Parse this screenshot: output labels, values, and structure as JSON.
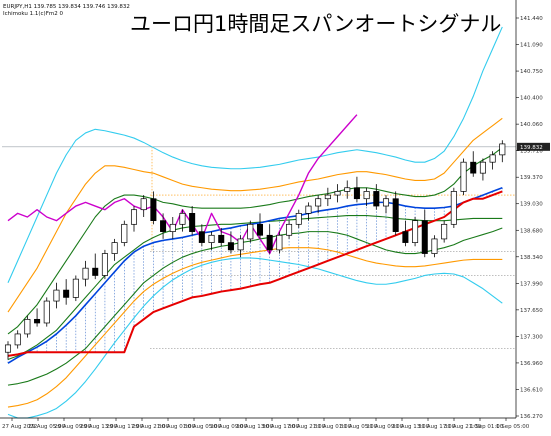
{
  "header": {
    "symbol_line": "EURJPY,H1  139.785 139.834 139.746 139.832",
    "indicator_line": "Ichimoku 1.1(c)Fm2 0"
  },
  "chart_data": {
    "type": "candlestick",
    "title": "ユーロ円1時間足スパンオートシグナル",
    "price_range": [
      136.05,
      141.55
    ],
    "price_ticks": [
      "141.440",
      "141.090",
      "140.750",
      "140.400",
      "140.060",
      "139.716",
      "139.370",
      "139.030",
      "138.680",
      "138.340",
      "137.990",
      "137.650",
      "137.300",
      "136.960",
      "136.610",
      "136.270"
    ],
    "current_price_label": "139.832",
    "time_labels": [
      "27 Aug 2022",
      "29 Aug 05:00",
      "29 Aug 09:00",
      "29 Aug 13:00",
      "29 Aug 17:00",
      "29 Aug 21:00",
      "30 Aug 01:00",
      "30 Aug 05:00",
      "30 Aug 09:00",
      "30 Aug 13:00",
      "30 Aug 17:00",
      "30 Aug 21:00",
      "31 Aug 01:00",
      "31 Aug 05:00",
      "31 Aug 09:00",
      "31 Aug 13:00",
      "31 Aug 17:00",
      "31 Aug 21:00",
      "1 Sep 01:00",
      "1 Sep 05:00"
    ],
    "reference_lines": [
      139.76,
      139.1,
      138.33,
      138.0,
      137.0
    ],
    "candles": [
      [
        136.95,
        137.1,
        136.85,
        137.05
      ],
      [
        137.05,
        137.25,
        137.0,
        137.2
      ],
      [
        137.2,
        137.45,
        137.15,
        137.4
      ],
      [
        137.4,
        137.55,
        137.3,
        137.35
      ],
      [
        137.35,
        137.7,
        137.3,
        137.65
      ],
      [
        137.65,
        137.9,
        137.55,
        137.8
      ],
      [
        137.8,
        137.95,
        137.6,
        137.7
      ],
      [
        137.7,
        138.0,
        137.65,
        137.95
      ],
      [
        137.95,
        138.2,
        137.85,
        138.1
      ],
      [
        138.1,
        138.3,
        137.95,
        138.0
      ],
      [
        138.0,
        138.35,
        137.95,
        138.3
      ],
      [
        138.3,
        138.5,
        138.2,
        138.45
      ],
      [
        138.45,
        138.75,
        138.4,
        138.7
      ],
      [
        138.7,
        138.95,
        138.6,
        138.9
      ],
      [
        138.9,
        139.1,
        138.8,
        139.05
      ],
      [
        139.05,
        139.15,
        138.7,
        138.75
      ],
      [
        138.75,
        138.85,
        138.5,
        138.6
      ],
      [
        138.6,
        138.8,
        138.5,
        138.7
      ],
      [
        138.7,
        138.9,
        138.6,
        138.85
      ],
      [
        138.85,
        138.95,
        138.55,
        138.6
      ],
      [
        138.6,
        138.7,
        138.4,
        138.45
      ],
      [
        138.45,
        138.6,
        138.35,
        138.55
      ],
      [
        138.55,
        138.65,
        138.4,
        138.45
      ],
      [
        138.45,
        138.6,
        138.3,
        138.35
      ],
      [
        138.35,
        138.55,
        138.25,
        138.5
      ],
      [
        138.5,
        138.75,
        138.45,
        138.7
      ],
      [
        138.7,
        138.85,
        138.5,
        138.55
      ],
      [
        138.55,
        138.7,
        138.3,
        138.35
      ],
      [
        138.35,
        138.6,
        138.3,
        138.55
      ],
      [
        138.55,
        138.75,
        138.5,
        138.7
      ],
      [
        138.7,
        138.9,
        138.65,
        138.85
      ],
      [
        138.85,
        139.0,
        138.75,
        138.95
      ],
      [
        138.95,
        139.1,
        138.85,
        139.05
      ],
      [
        139.05,
        139.2,
        138.95,
        139.1
      ],
      [
        139.1,
        139.25,
        139.0,
        139.15
      ],
      [
        139.15,
        139.3,
        139.05,
        139.2
      ],
      [
        139.2,
        139.35,
        139.0,
        139.05
      ],
      [
        139.05,
        139.2,
        138.95,
        139.15
      ],
      [
        139.15,
        139.25,
        138.9,
        138.95
      ],
      [
        138.95,
        139.1,
        138.85,
        139.05
      ],
      [
        139.05,
        139.15,
        138.55,
        138.6
      ],
      [
        138.6,
        138.75,
        138.4,
        138.45
      ],
      [
        138.45,
        138.8,
        138.4,
        138.75
      ],
      [
        138.75,
        138.9,
        138.25,
        138.3
      ],
      [
        138.3,
        138.55,
        138.25,
        138.5
      ],
      [
        138.5,
        138.75,
        138.45,
        138.7
      ],
      [
        138.7,
        139.2,
        138.65,
        139.15
      ],
      [
        139.15,
        139.6,
        139.1,
        139.55
      ],
      [
        139.55,
        139.7,
        139.35,
        139.4
      ],
      [
        139.4,
        139.6,
        139.3,
        139.55
      ],
      [
        139.55,
        139.7,
        139.45,
        139.65
      ],
      [
        139.65,
        139.85,
        139.55,
        139.8
      ]
    ],
    "lines": {
      "tenkan_red": [
        136.9,
        136.92,
        136.95,
        136.95,
        136.95,
        136.95,
        136.95,
        136.95,
        136.95,
        136.95,
        136.95,
        136.95,
        136.95,
        137.3,
        137.4,
        137.5,
        137.55,
        137.6,
        137.65,
        137.7,
        137.72,
        137.75,
        137.78,
        137.8,
        137.82,
        137.85,
        137.88,
        137.9,
        137.95,
        138.0,
        138.05,
        138.1,
        138.15,
        138.2,
        138.25,
        138.3,
        138.35,
        138.4,
        138.45,
        138.5,
        138.55,
        138.6,
        138.65,
        138.7,
        138.75,
        138.8,
        138.9,
        139.0,
        139.05,
        139.05,
        139.1,
        139.15
      ],
      "blue": [
        136.8,
        136.88,
        136.95,
        137.02,
        137.1,
        137.2,
        137.32,
        137.45,
        137.6,
        137.75,
        137.9,
        138.05,
        138.2,
        138.32,
        138.4,
        138.45,
        138.48,
        138.5,
        138.52,
        138.55,
        138.58,
        138.6,
        138.63,
        138.65,
        138.68,
        138.7,
        138.72,
        138.75,
        138.78,
        138.8,
        138.82,
        138.85,
        138.88,
        138.9,
        138.92,
        138.95,
        138.97,
        138.98,
        139.0,
        139.0,
        138.98,
        138.95,
        138.93,
        138.92,
        138.92,
        138.93,
        138.95,
        139.0,
        139.05,
        139.1,
        139.15,
        139.2
      ],
      "green_mid": [
        136.85,
        136.9,
        136.97,
        137.05,
        137.15,
        137.25,
        137.4,
        137.55,
        137.7,
        137.85,
        138.0,
        138.15,
        138.25,
        138.35,
        138.45,
        138.52,
        138.58,
        138.62,
        138.65,
        138.67,
        138.68,
        138.69,
        138.7,
        138.7,
        138.71,
        138.72,
        138.73,
        138.74,
        138.75,
        138.76,
        138.77,
        138.78,
        138.79,
        138.8,
        138.81,
        138.82,
        138.82,
        138.82,
        138.81,
        138.8,
        138.78,
        138.77,
        138.76,
        138.75,
        138.75,
        138.75,
        138.76,
        138.77,
        138.78,
        138.78,
        138.78,
        138.78
      ],
      "bb_green_upper": [
        137.2,
        137.3,
        137.45,
        137.6,
        137.8,
        138.0,
        138.2,
        138.4,
        138.6,
        138.8,
        138.95,
        139.05,
        139.1,
        139.1,
        139.08,
        139.05,
        139.0,
        138.98,
        138.95,
        138.93,
        138.92,
        138.92,
        138.92,
        138.92,
        138.92,
        138.93,
        138.95,
        138.97,
        139.0,
        139.02,
        139.05,
        139.08,
        139.1,
        139.12,
        139.15,
        139.18,
        139.2,
        139.2,
        139.18,
        139.15,
        139.12,
        139.1,
        139.08,
        139.08,
        139.1,
        139.15,
        139.25,
        139.4,
        139.5,
        139.58,
        139.65,
        139.75
      ],
      "bb_green_lower": [
        136.5,
        136.52,
        136.55,
        136.6,
        136.65,
        136.72,
        136.8,
        136.9,
        137.0,
        137.15,
        137.3,
        137.45,
        137.6,
        137.75,
        137.9,
        138.0,
        138.1,
        138.18,
        138.25,
        138.3,
        138.34,
        138.37,
        138.4,
        138.42,
        138.45,
        138.47,
        138.5,
        138.52,
        138.55,
        138.57,
        138.58,
        138.6,
        138.6,
        138.6,
        138.58,
        138.55,
        138.5,
        138.45,
        138.4,
        138.35,
        138.32,
        138.3,
        138.3,
        138.32,
        138.35,
        138.38,
        138.42,
        138.48,
        138.52,
        138.56,
        138.6,
        138.65
      ],
      "bb_orange_upper": [
        137.5,
        137.7,
        137.9,
        138.1,
        138.35,
        138.6,
        138.85,
        139.05,
        139.25,
        139.4,
        139.5,
        139.5,
        139.48,
        139.45,
        139.42,
        139.4,
        139.35,
        139.3,
        139.25,
        139.22,
        139.2,
        139.18,
        139.17,
        139.16,
        139.16,
        139.17,
        139.18,
        139.2,
        139.22,
        139.25,
        139.28,
        139.3,
        139.32,
        139.35,
        139.38,
        139.4,
        139.42,
        139.42,
        139.4,
        139.38,
        139.35,
        139.32,
        139.3,
        139.3,
        139.32,
        139.4,
        139.55,
        139.7,
        139.85,
        139.95,
        140.05,
        140.15
      ],
      "bb_orange_lower": [
        136.2,
        136.22,
        136.25,
        136.3,
        136.38,
        136.48,
        136.6,
        136.75,
        136.9,
        137.05,
        137.2,
        137.35,
        137.5,
        137.65,
        137.78,
        137.88,
        137.96,
        138.03,
        138.09,
        138.14,
        138.18,
        138.21,
        138.24,
        138.27,
        138.29,
        138.31,
        138.33,
        138.35,
        138.37,
        138.38,
        138.38,
        138.38,
        138.37,
        138.35,
        138.32,
        138.28,
        138.24,
        138.2,
        138.17,
        138.15,
        138.13,
        138.12,
        138.12,
        138.13,
        138.15,
        138.17,
        138.19,
        138.21,
        138.22,
        138.22,
        138.22,
        138.22
      ],
      "bb_cyan_upper": [
        137.9,
        138.2,
        138.5,
        138.8,
        139.1,
        139.4,
        139.65,
        139.85,
        139.95,
        140.0,
        139.98,
        139.95,
        139.92,
        139.88,
        139.82,
        139.75,
        139.68,
        139.62,
        139.57,
        139.53,
        139.5,
        139.48,
        139.47,
        139.46,
        139.46,
        139.47,
        139.48,
        139.5,
        139.52,
        139.55,
        139.58,
        139.6,
        139.62,
        139.65,
        139.68,
        139.7,
        139.72,
        139.7,
        139.68,
        139.65,
        139.62,
        139.58,
        139.55,
        139.55,
        139.6,
        139.7,
        139.9,
        140.15,
        140.45,
        140.8,
        141.1,
        141.4
      ],
      "bb_cyan_lower": [
        136.1,
        136.05,
        136.05,
        136.08,
        136.12,
        136.18,
        136.28,
        136.4,
        136.55,
        136.72,
        136.9,
        137.08,
        137.25,
        137.42,
        137.58,
        137.72,
        137.84,
        137.94,
        138.02,
        138.09,
        138.14,
        138.18,
        138.21,
        138.23,
        138.24,
        138.24,
        138.23,
        138.21,
        138.19,
        138.17,
        138.15,
        138.12,
        138.09,
        138.05,
        138.01,
        137.97,
        137.93,
        137.9,
        137.88,
        137.88,
        137.9,
        137.93,
        137.96,
        138.0,
        138.02,
        138.03,
        138.02,
        137.98,
        137.9,
        137.82,
        137.72,
        137.62
      ],
      "magenta_chikou": [
        138.75,
        138.85,
        138.8,
        138.9,
        138.8,
        138.75,
        138.85,
        138.95,
        139.0,
        138.95,
        138.9,
        139.0,
        139.05,
        138.95,
        138.9,
        138.95,
        138.8,
        138.6,
        138.9,
        138.7,
        138.5,
        138.85,
        138.6,
        138.55,
        138.45,
        138.7,
        138.5,
        138.3,
        138.6,
        138.85,
        139.1,
        139.4,
        139.6,
        139.75,
        139.9,
        140.05,
        140.2
      ]
    }
  },
  "colors": {
    "background": "#ffffff",
    "bull_candle": "#ffffff",
    "bear_candle": "#000000",
    "tenkan": "#e60000",
    "kijun": "#0044dd",
    "midline": "#1a7a1a",
    "band_green": "#1a7a1a",
    "band_orange": "#ff9900",
    "band_cyan": "#33ccee",
    "chikou": "#cc00cc",
    "cloud_hatch": "#4477cc",
    "dotted_orange": "#ff9900",
    "price_line": "#9aa0a8"
  }
}
